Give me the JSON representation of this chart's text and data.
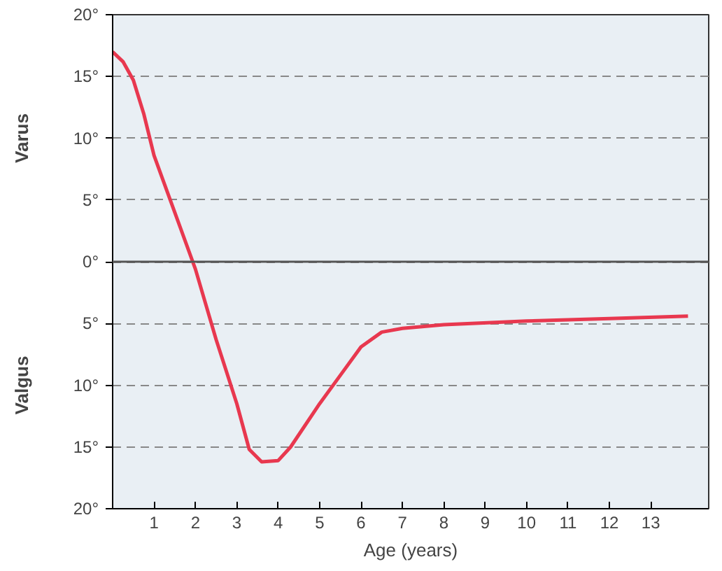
{
  "chart_data": {
    "type": "line",
    "xlabel": "Age (years)",
    "annotations": [
      "Varus",
      "Valgus"
    ],
    "x": [
      0,
      0.25,
      0.5,
      0.75,
      1,
      1.5,
      2,
      2.5,
      3,
      3.3,
      3.6,
      4,
      4.3,
      5,
      5.5,
      6,
      6.5,
      7,
      8,
      10,
      12,
      13.9
    ],
    "series": [
      {
        "color": "#e8384f",
        "values": [
          17.0,
          16.2,
          14.7,
          12.0,
          8.6,
          4.0,
          -0.6,
          -6.3,
          -11.5,
          -15.2,
          -16.2,
          -16.1,
          -15.0,
          -11.5,
          -9.2,
          -6.9,
          -5.7,
          -5.4,
          -5.1,
          -4.8,
          -4.6,
          -4.4
        ]
      }
    ],
    "xlim": [
      0,
      14.4
    ],
    "ylim": [
      -20,
      20
    ],
    "xticks": [
      1,
      2,
      3,
      4,
      5,
      6,
      7,
      8,
      9,
      10,
      11,
      12,
      13
    ],
    "yticks": [
      {
        "value": -20,
        "label": "20°"
      },
      {
        "value": -15,
        "label": "15°"
      },
      {
        "value": -10,
        "label": "10°"
      },
      {
        "value": -5,
        "label": "5°"
      },
      {
        "value": 0,
        "label": "0°"
      },
      {
        "value": 5,
        "label": "5°"
      },
      {
        "value": 10,
        "label": "10°"
      },
      {
        "value": 15,
        "label": "15°"
      },
      {
        "value": 20,
        "label": "20°"
      }
    ],
    "ref_lines": [
      {
        "axis": "y",
        "value": 0,
        "color": "#555555",
        "line_style": "solid"
      }
    ],
    "grid": "y",
    "marker": "none",
    "line_style": "solid"
  }
}
